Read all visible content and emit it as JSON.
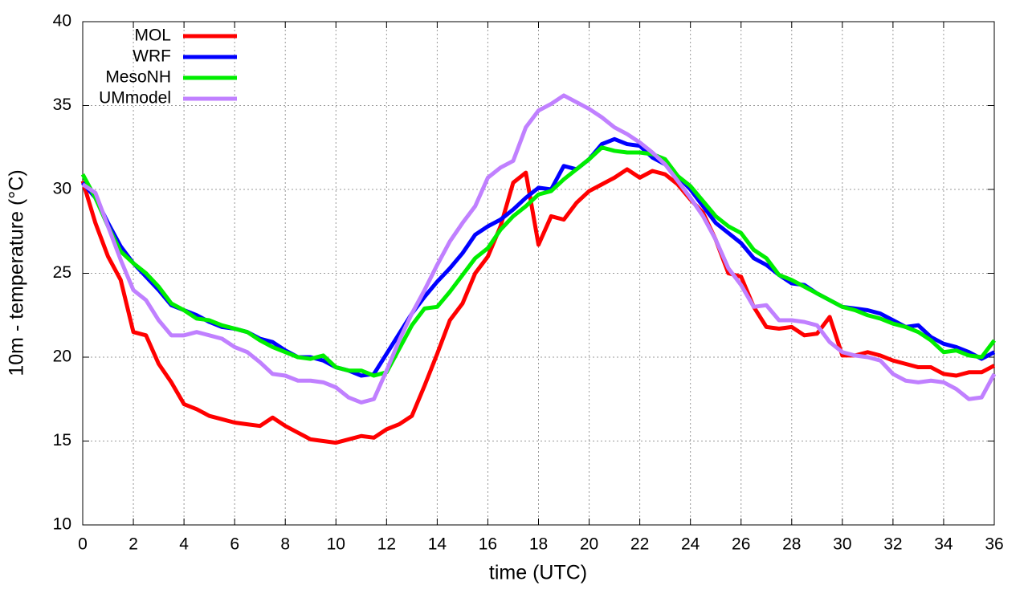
{
  "chart_data": {
    "type": "line",
    "xlabel": "time (UTC)",
    "ylabel": "10m - temperature (°C)",
    "x": [
      0,
      0.5,
      1,
      1.5,
      2,
      2.5,
      3,
      3.5,
      4,
      4.5,
      5,
      5.5,
      6,
      6.5,
      7,
      7.5,
      8,
      8.5,
      9,
      9.5,
      10,
      10.5,
      11,
      11.5,
      12,
      12.5,
      13,
      13.5,
      14,
      14.5,
      15,
      15.5,
      16,
      16.5,
      17,
      17.5,
      18,
      18.5,
      19,
      19.5,
      20,
      20.5,
      21,
      21.5,
      22,
      22.5,
      23,
      23.5,
      24,
      24.5,
      25,
      25.5,
      26,
      26.5,
      27,
      27.5,
      28,
      28.5,
      29,
      29.5,
      30,
      30.5,
      31,
      31.5,
      32,
      32.5,
      33,
      33.5,
      34,
      34.5,
      35,
      35.5,
      36
    ],
    "series": [
      {
        "name": "MOL",
        "color": "#ff0000",
        "values": [
          30.5,
          28,
          26,
          24.6,
          21.5,
          21.3,
          19.6,
          18.5,
          17.2,
          16.9,
          16.5,
          16.3,
          16.1,
          16.0,
          15.9,
          16.4,
          15.9,
          15.5,
          15.1,
          15.0,
          14.9,
          15.1,
          15.3,
          15.2,
          15.7,
          16.0,
          16.5,
          18.3,
          20.2,
          22.2,
          23.2,
          25.0,
          26.0,
          27.8,
          30.4,
          31.0,
          26.7,
          28.4,
          28.2,
          29.2,
          29.9,
          30.3,
          30.7,
          31.2,
          30.7,
          31.1,
          30.9,
          30.3,
          29.4,
          28.6,
          27.0,
          25.0,
          24.8,
          23.0,
          21.8,
          21.7,
          21.8,
          21.3,
          21.4,
          22.4,
          20.1,
          20.1,
          20.3,
          20.1,
          19.8,
          19.6,
          19.4,
          19.4,
          19.0,
          18.9,
          19.1,
          19.1,
          19.5
        ]
      },
      {
        "name": "WRF",
        "color": "#0000ff",
        "values": [
          30.4,
          29.5,
          28,
          26.6,
          25.6,
          24.8,
          24,
          23.1,
          22.8,
          22.5,
          22.1,
          21.8,
          21.7,
          21.5,
          21.1,
          20.9,
          20.4,
          20.0,
          20.0,
          19.8,
          19.4,
          19.2,
          18.9,
          19.0,
          20.2,
          21.4,
          22.6,
          23.6,
          24.5,
          25.3,
          26.2,
          27.3,
          27.8,
          28.2,
          28.8,
          29.5,
          30.1,
          30.0,
          31.4,
          31.2,
          31.8,
          32.7,
          33.0,
          32.7,
          32.6,
          31.9,
          31.5,
          30.8,
          30.0,
          29.0,
          28.0,
          27.4,
          26.8,
          25.9,
          25.5,
          24.9,
          24.4,
          24.3,
          23.8,
          23.4,
          23.0,
          22.9,
          22.8,
          22.6,
          22.2,
          21.8,
          21.9,
          21.2,
          20.8,
          20.6,
          20.3,
          19.9,
          20.3
        ]
      },
      {
        "name": "MesoNH",
        "color": "#00ee00",
        "values": [
          30.9,
          29.5,
          27.8,
          26.3,
          25.6,
          25.0,
          24.2,
          23.2,
          22.8,
          22.3,
          22.2,
          21.9,
          21.7,
          21.5,
          21.0,
          20.6,
          20.3,
          20.0,
          19.9,
          20.1,
          19.4,
          19.2,
          19.2,
          18.9,
          19.1,
          20.5,
          21.9,
          22.9,
          23.0,
          23.9,
          24.9,
          25.9,
          26.5,
          27.6,
          28.4,
          29.0,
          29.7,
          29.9,
          30.6,
          31.2,
          31.8,
          32.5,
          32.3,
          32.2,
          32.2,
          32.1,
          31.8,
          30.8,
          30.2,
          29.3,
          28.4,
          27.8,
          27.4,
          26.4,
          25.9,
          24.9,
          24.6,
          24.2,
          23.8,
          23.4,
          23.0,
          22.8,
          22.5,
          22.3,
          22.0,
          21.8,
          21.5,
          21.0,
          20.3,
          20.4,
          20.1,
          20.0,
          21.0
        ]
      },
      {
        "name": "UMmodel",
        "color": "#c080ff",
        "values": [
          30.3,
          29.8,
          27.8,
          25.8,
          24.0,
          23.4,
          22.2,
          21.3,
          21.3,
          21.5,
          21.3,
          21.1,
          20.6,
          20.3,
          19.7,
          19.0,
          18.9,
          18.6,
          18.6,
          18.5,
          18.2,
          17.6,
          17.3,
          17.5,
          19.2,
          21.0,
          22.6,
          24.0,
          25.5,
          26.9,
          28.0,
          29.0,
          30.7,
          31.3,
          31.7,
          33.7,
          34.7,
          35.1,
          35.6,
          35.2,
          34.8,
          34.3,
          33.7,
          33.3,
          32.8,
          32.2,
          31.5,
          30.5,
          29.5,
          28.4,
          27.0,
          25.3,
          24.3,
          23.0,
          23.1,
          22.2,
          22.2,
          22.1,
          21.9,
          20.9,
          20.3,
          20.1,
          20.0,
          19.8,
          19.0,
          18.6,
          18.5,
          18.6,
          18.5,
          18.1,
          17.5,
          17.6,
          19.0
        ]
      }
    ],
    "xlim": [
      0,
      36
    ],
    "xticks": [
      0,
      2,
      4,
      6,
      8,
      10,
      12,
      14,
      16,
      18,
      20,
      22,
      24,
      26,
      28,
      30,
      32,
      34,
      36
    ],
    "ylim": [
      10,
      40
    ],
    "yticks": [
      10,
      15,
      20,
      25,
      30,
      35,
      40
    ],
    "grid": true,
    "legend": "top-left"
  }
}
